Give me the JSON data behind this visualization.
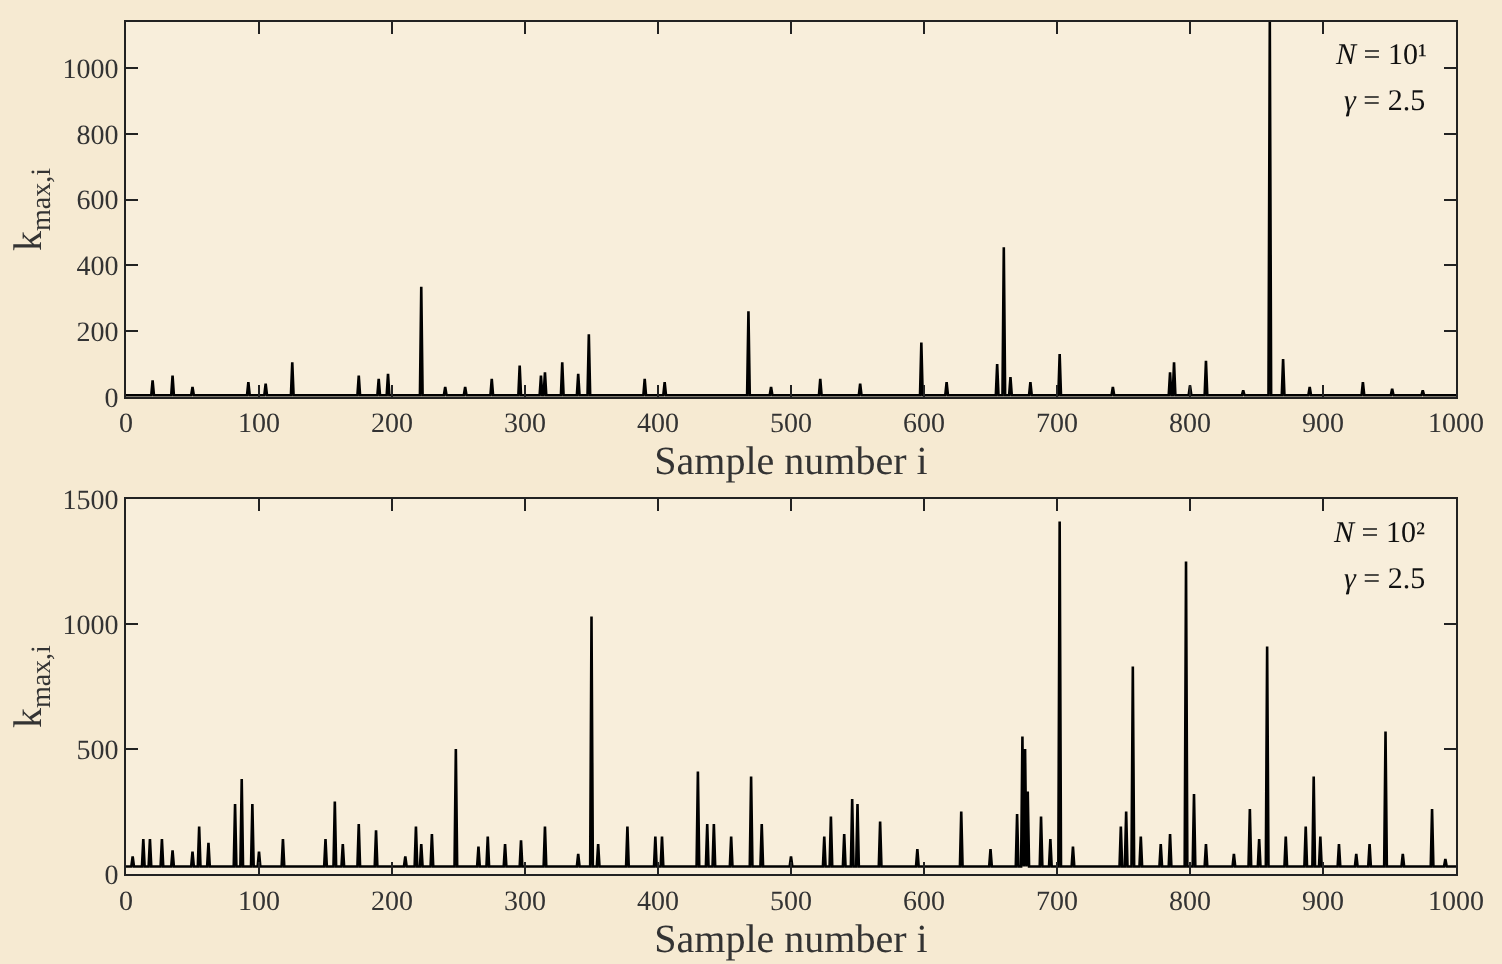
{
  "chart_data": [
    {
      "type": "line",
      "xlabel": "Sample number i",
      "ylabel": "k$_{max,i}$",
      "xlim": [
        0,
        1000
      ],
      "xticks": [
        0,
        100,
        200,
        300,
        400,
        500,
        600,
        700,
        800,
        900,
        1000
      ],
      "ylim": [
        0,
        1140
      ],
      "yticks": [
        0,
        200,
        400,
        600,
        800,
        1000
      ],
      "grid": false,
      "marker": "none",
      "line_style": "solid",
      "annotations": [
        "N = 10¹",
        "γ = 2.5"
      ],
      "series": [
        {
          "color": "#000000",
          "x": [
            0,
            19,
            20,
            21,
            34,
            35,
            36,
            49,
            50,
            51,
            91,
            92,
            93,
            104,
            105,
            106,
            124,
            125,
            126,
            174,
            175,
            176,
            189,
            190,
            191,
            196,
            197,
            198,
            221,
            222,
            223,
            239,
            240,
            241,
            254,
            255,
            256,
            274,
            275,
            276,
            295,
            296,
            297,
            311,
            312,
            313,
            314,
            315,
            316,
            327,
            328,
            329,
            339,
            340,
            341,
            347,
            348,
            349,
            389,
            390,
            391,
            404,
            405,
            406,
            467,
            468,
            469,
            484,
            485,
            486,
            521,
            522,
            523,
            551,
            552,
            553,
            597,
            598,
            599,
            616,
            617,
            618,
            654,
            655,
            656,
            659,
            660,
            661,
            664,
            665,
            666,
            679,
            680,
            681,
            701,
            702,
            703,
            741,
            742,
            743,
            784,
            785,
            786,
            787,
            788,
            789,
            799,
            800,
            801,
            811,
            812,
            813,
            839,
            840,
            841,
            859,
            860,
            861,
            869,
            870,
            871,
            889,
            890,
            891,
            929,
            930,
            931,
            951,
            952,
            953,
            974,
            975,
            976,
            1000
          ],
          "values": [
            5,
            5,
            50,
            5,
            5,
            65,
            5,
            5,
            30,
            5,
            5,
            45,
            5,
            5,
            40,
            5,
            5,
            105,
            5,
            5,
            65,
            5,
            5,
            55,
            5,
            5,
            70,
            5,
            5,
            335,
            5,
            5,
            30,
            5,
            5,
            30,
            5,
            5,
            55,
            5,
            5,
            95,
            5,
            5,
            65,
            5,
            5,
            75,
            5,
            5,
            105,
            5,
            5,
            70,
            5,
            5,
            190,
            5,
            5,
            55,
            5,
            5,
            45,
            5,
            5,
            260,
            5,
            5,
            30,
            5,
            5,
            55,
            5,
            5,
            40,
            5,
            5,
            165,
            5,
            5,
            45,
            5,
            5,
            100,
            5,
            5,
            455,
            5,
            5,
            60,
            5,
            5,
            45,
            5,
            5,
            130,
            5,
            5,
            30,
            5,
            5,
            75,
            5,
            5,
            105,
            5,
            5,
            35,
            5,
            5,
            110,
            5,
            5,
            20,
            5,
            5,
            1140,
            5,
            5,
            115,
            5,
            5,
            30,
            5,
            5,
            45,
            5,
            5,
            25,
            5,
            5,
            20,
            5,
            5
          ]
        }
      ]
    },
    {
      "type": "line",
      "xlabel": "Sample number i",
      "ylabel": "k$_{max,i}$",
      "xlim": [
        0,
        1000
      ],
      "xticks": [
        0,
        100,
        200,
        300,
        400,
        500,
        600,
        700,
        800,
        900,
        1000
      ],
      "ylim": [
        0,
        1500
      ],
      "yticks": [
        0,
        500,
        1000,
        1500
      ],
      "grid": false,
      "marker": "none",
      "line_style": "solid",
      "annotations": [
        "N = 10²",
        "γ = 2.5"
      ],
      "series": [
        {
          "color": "#000000",
          "x": [
            0,
            4,
            5,
            6,
            12,
            13,
            14,
            17,
            18,
            19,
            26,
            27,
            28,
            34,
            35,
            36,
            49,
            50,
            51,
            54,
            55,
            56,
            61,
            62,
            63,
            81,
            82,
            83,
            86,
            87,
            88,
            94,
            95,
            96,
            99,
            100,
            101,
            117,
            118,
            119,
            149,
            150,
            151,
            156,
            157,
            158,
            162,
            163,
            164,
            174,
            175,
            176,
            187,
            188,
            189,
            209,
            210,
            211,
            217,
            218,
            219,
            221,
            222,
            223,
            229,
            230,
            231,
            247,
            248,
            249,
            264,
            265,
            266,
            271,
            272,
            273,
            284,
            285,
            286,
            296,
            297,
            298,
            314,
            315,
            316,
            339,
            340,
            341,
            349,
            350,
            351,
            354,
            355,
            356,
            376,
            377,
            378,
            397,
            398,
            399,
            402,
            403,
            404,
            429,
            430,
            431,
            436,
            437,
            438,
            441,
            442,
            443,
            454,
            455,
            456,
            469,
            470,
            471,
            477,
            478,
            479,
            499,
            500,
            501,
            524,
            525,
            526,
            529,
            530,
            531,
            539,
            540,
            541,
            545,
            546,
            547,
            549,
            550,
            551,
            566,
            567,
            568,
            594,
            595,
            596,
            627,
            628,
            629,
            649,
            650,
            651,
            669,
            670,
            671,
            673,
            674,
            675,
            676,
            677,
            678,
            679,
            687,
            688,
            689,
            694,
            695,
            696,
            701,
            702,
            703,
            711,
            712,
            713,
            747,
            748,
            749,
            751,
            752,
            753,
            756,
            757,
            758,
            762,
            763,
            764,
            777,
            778,
            779,
            784,
            785,
            786,
            796,
            797,
            798,
            802,
            803,
            804,
            811,
            812,
            813,
            832,
            833,
            834,
            844,
            845,
            846,
            851,
            852,
            853,
            857,
            858,
            859,
            871,
            872,
            873,
            886,
            887,
            888,
            892,
            893,
            894,
            897,
            898,
            899,
            911,
            912,
            913,
            924,
            925,
            926,
            934,
            935,
            936,
            946,
            947,
            948,
            959,
            960,
            961,
            981,
            982,
            983,
            991,
            992,
            993,
            1000
          ],
          "values": [
            30,
            30,
            70,
            30,
            30,
            140,
            30,
            30,
            140,
            30,
            30,
            140,
            30,
            30,
            95,
            30,
            30,
            90,
            30,
            30,
            190,
            30,
            30,
            125,
            30,
            30,
            280,
            30,
            30,
            380,
            30,
            30,
            280,
            30,
            30,
            90,
            30,
            30,
            140,
            30,
            30,
            140,
            30,
            30,
            290,
            30,
            30,
            120,
            30,
            30,
            200,
            30,
            30,
            175,
            30,
            30,
            70,
            30,
            30,
            190,
            30,
            30,
            120,
            30,
            30,
            160,
            30,
            30,
            500,
            30,
            30,
            110,
            30,
            30,
            150,
            30,
            30,
            120,
            30,
            30,
            135,
            30,
            30,
            190,
            30,
            30,
            80,
            30,
            30,
            1030,
            30,
            30,
            120,
            30,
            30,
            190,
            30,
            30,
            150,
            30,
            30,
            150,
            30,
            30,
            410,
            30,
            30,
            200,
            30,
            30,
            200,
            30,
            30,
            150,
            30,
            30,
            390,
            30,
            30,
            200,
            30,
            30,
            70,
            30,
            30,
            150,
            30,
            30,
            230,
            30,
            30,
            160,
            30,
            30,
            300,
            30,
            30,
            280,
            30,
            30,
            210,
            30,
            30,
            100,
            30,
            30,
            250,
            30,
            30,
            100,
            30,
            30,
            240,
            30,
            30,
            550,
            30,
            500,
            30,
            330,
            30,
            30,
            230,
            30,
            30,
            140,
            30,
            30,
            1410,
            30,
            30,
            110,
            30,
            30,
            190,
            30,
            30,
            250,
            30,
            30,
            830,
            30,
            30,
            150,
            30,
            30,
            120,
            30,
            30,
            160,
            30,
            30,
            1250,
            30,
            30,
            320,
            30,
            30,
            120,
            30,
            30,
            80,
            30,
            30,
            260,
            30,
            30,
            140,
            30,
            30,
            910,
            30,
            30,
            150,
            30,
            30,
            190,
            30,
            30,
            390,
            30,
            30,
            150,
            30,
            30,
            120,
            30,
            30,
            80,
            30,
            30,
            120,
            30,
            30,
            570,
            30,
            30,
            80,
            30,
            30,
            260,
            30,
            30,
            60,
            30,
            30
          ]
        }
      ]
    }
  ]
}
